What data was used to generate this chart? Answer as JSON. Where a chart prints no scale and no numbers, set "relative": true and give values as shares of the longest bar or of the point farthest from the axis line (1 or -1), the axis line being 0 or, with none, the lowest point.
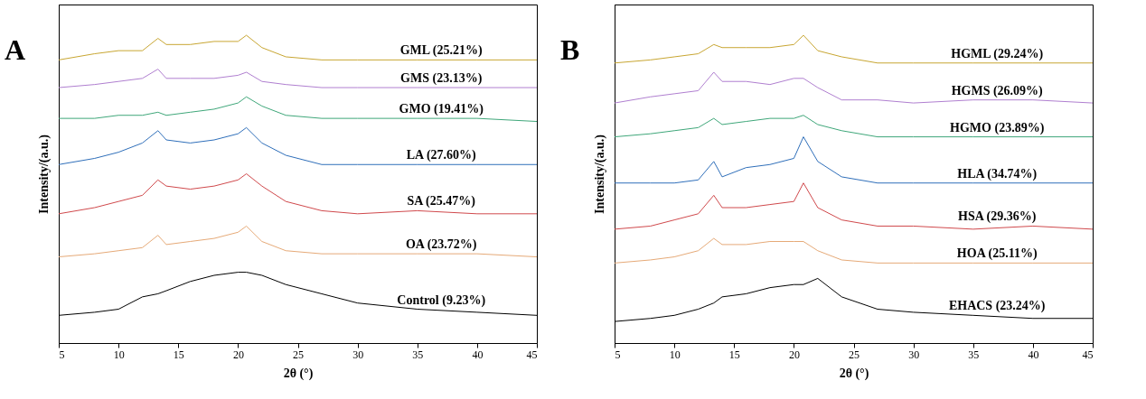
{
  "chart_data": [
    {
      "type": "line",
      "title": "A",
      "xlabel": "2θ (°)",
      "ylabel": "Intensity/(a.u.)",
      "relative": true,
      "xlim": [
        5,
        45
      ],
      "xticks": [
        5,
        10,
        15,
        20,
        25,
        30,
        35,
        40,
        45
      ],
      "x": [
        5,
        8,
        10,
        12,
        13.3,
        14,
        16,
        18,
        20,
        20.7,
        22,
        24,
        27,
        30,
        35,
        40,
        45
      ],
      "legend": false,
      "series": [
        {
          "name": "GML (25.21%)",
          "color": "#c8a632",
          "values": [
            0.92,
            0.94,
            0.95,
            0.95,
            0.99,
            0.97,
            0.97,
            0.98,
            0.98,
            1,
            0.96,
            0.93,
            0.92,
            0.92,
            0.92,
            0.92,
            0.92
          ]
        },
        {
          "name": "GMS (23.13%)",
          "color": "#b07fd0",
          "values": [
            0.83,
            0.84,
            0.85,
            0.86,
            0.89,
            0.86,
            0.86,
            0.86,
            0.87,
            0.88,
            0.85,
            0.84,
            0.83,
            0.83,
            0.83,
            0.83,
            0.83
          ]
        },
        {
          "name": "GMO (19.41%)",
          "color": "#3fa77a",
          "values": [
            0.73,
            0.73,
            0.74,
            0.74,
            0.75,
            0.74,
            0.75,
            0.76,
            0.78,
            0.8,
            0.77,
            0.74,
            0.73,
            0.73,
            0.73,
            0.73,
            0.72
          ]
        },
        {
          "name": "LA (27.60%)",
          "color": "#2f6fba",
          "values": [
            0.58,
            0.6,
            0.62,
            0.65,
            0.69,
            0.66,
            0.65,
            0.66,
            0.68,
            0.7,
            0.65,
            0.61,
            0.58,
            0.58,
            0.58,
            0.58,
            0.58
          ]
        },
        {
          "name": "SA (25.47%)",
          "color": "#d0494c",
          "values": [
            0.42,
            0.44,
            0.46,
            0.48,
            0.53,
            0.51,
            0.5,
            0.51,
            0.53,
            0.55,
            0.51,
            0.46,
            0.43,
            0.42,
            0.43,
            0.42,
            0.42
          ]
        },
        {
          "name": "OA (23.72%)",
          "color": "#e6aa78",
          "values": [
            0.28,
            0.29,
            0.3,
            0.31,
            0.35,
            0.32,
            0.33,
            0.34,
            0.36,
            0.38,
            0.33,
            0.3,
            0.29,
            0.29,
            0.29,
            0.29,
            0.28
          ]
        },
        {
          "name": "Control (9.23%)",
          "color": "#000000",
          "values": [
            0.09,
            0.1,
            0.11,
            0.15,
            0.16,
            0.17,
            0.2,
            0.22,
            0.23,
            0.23,
            0.22,
            0.19,
            0.16,
            0.13,
            0.11,
            0.1,
            0.09
          ]
        }
      ]
    },
    {
      "type": "line",
      "title": "B",
      "xlabel": "2θ (°)",
      "ylabel": "Intensity/(a.u.)",
      "relative": true,
      "xlim": [
        5,
        45
      ],
      "xticks": [
        5,
        10,
        15,
        20,
        25,
        30,
        35,
        40,
        45
      ],
      "x": [
        5,
        8,
        10,
        12,
        13.3,
        14,
        16,
        18,
        20,
        20.8,
        22,
        24,
        27,
        30,
        35,
        40,
        45
      ],
      "legend": false,
      "series": [
        {
          "name": "HGML (29.24%)",
          "color": "#c8a632",
          "values": [
            0.91,
            0.92,
            0.93,
            0.94,
            0.97,
            0.96,
            0.96,
            0.96,
            0.97,
            1,
            0.95,
            0.93,
            0.91,
            0.91,
            0.91,
            0.91,
            0.91
          ]
        },
        {
          "name": "HGMS (26.09%)",
          "color": "#b07fd0",
          "values": [
            0.78,
            0.8,
            0.81,
            0.82,
            0.88,
            0.85,
            0.85,
            0.84,
            0.86,
            0.86,
            0.83,
            0.79,
            0.79,
            0.78,
            0.79,
            0.79,
            0.78
          ]
        },
        {
          "name": "HGMO (23.89%)",
          "color": "#3fa77a",
          "values": [
            0.67,
            0.68,
            0.69,
            0.7,
            0.73,
            0.71,
            0.72,
            0.73,
            0.73,
            0.74,
            0.71,
            0.69,
            0.67,
            0.67,
            0.67,
            0.67,
            0.67
          ]
        },
        {
          "name": "HLA (34.74%)",
          "color": "#2f6fba",
          "values": [
            0.52,
            0.52,
            0.52,
            0.53,
            0.59,
            0.54,
            0.57,
            0.58,
            0.6,
            0.67,
            0.59,
            0.54,
            0.52,
            0.52,
            0.52,
            0.52,
            0.52
          ]
        },
        {
          "name": "HSA (29.36%)",
          "color": "#d0494c",
          "values": [
            0.37,
            0.38,
            0.4,
            0.42,
            0.48,
            0.44,
            0.44,
            0.45,
            0.46,
            0.52,
            0.44,
            0.4,
            0.38,
            0.38,
            0.37,
            0.38,
            0.37
          ]
        },
        {
          "name": "HOA (25.11%)",
          "color": "#e6aa78",
          "values": [
            0.26,
            0.27,
            0.28,
            0.3,
            0.34,
            0.32,
            0.32,
            0.33,
            0.33,
            0.33,
            0.3,
            0.27,
            0.26,
            0.26,
            0.26,
            0.26,
            0.26
          ]
        },
        {
          "name": "EHACS (23.24%)",
          "color": "#000000",
          "values": [
            0.07,
            0.08,
            0.09,
            0.11,
            0.13,
            0.15,
            0.16,
            0.18,
            0.19,
            0.19,
            0.21,
            0.15,
            0.11,
            0.1,
            0.09,
            0.08,
            0.08
          ]
        }
      ]
    }
  ]
}
